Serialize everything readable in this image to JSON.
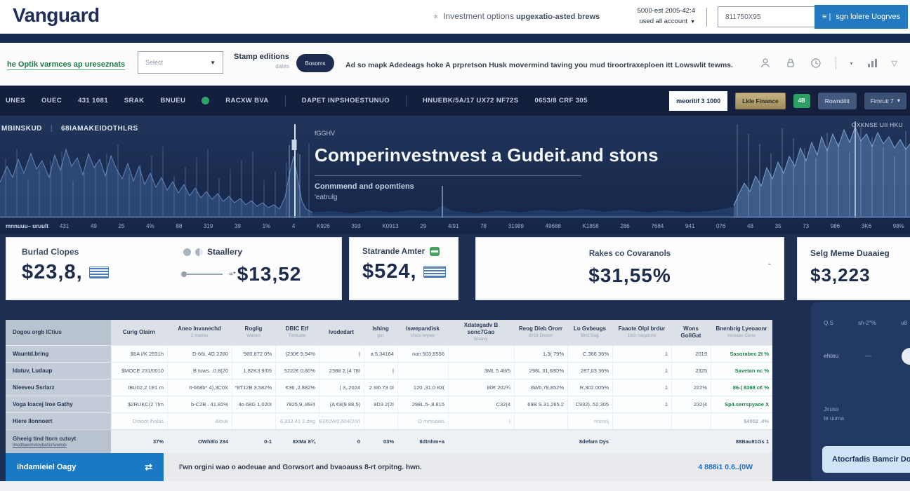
{
  "icons": {
    "asterisk": "∗",
    "caret_down": "▼",
    "caret_small": "▾",
    "caret_up": "ˆ",
    "menu_prefix": "≡ |",
    "swap": "⇄",
    "triangle": "▽",
    "pipe": "|",
    "dash": "—"
  },
  "colors": {
    "accent_blue": "#1a79c4",
    "navy": "#16294e",
    "green": "#2f9e64",
    "gold": "#b39f6e",
    "table_green": "#1e8048"
  },
  "header": {
    "logo": "Vanguard",
    "center_link": "Investment options",
    "right_note": "upgexatio-asted brews",
    "account_line1": "5000-est 2005-42:4",
    "account_line2": "used all account",
    "search_value": "811750X95",
    "signin_label": "sgn lolere Uogrves"
  },
  "toolbar": {
    "green_link": "he Optik varmces ap ureseznats",
    "select_value": "Select",
    "stamp_title": "Stamp editions",
    "stamp_sub": "dates",
    "pill_button": "Bosoms",
    "promo": "Ad so mapk Adedeags hoke A prpretson Husk movermind taving you mud tiroortraxeploen itt Lowswlit tewms."
  },
  "navbar": {
    "items": [
      "UNES",
      "OUEC",
      "431 1081",
      "SRAK",
      "BNUEU",
      "RACXW BVA",
      "DAPET INPSHOESTUNUO",
      "HNUEBK/5A/17 UX72 NF72S",
      "0653/8 CRF 305"
    ],
    "white_button": "meoritif 3 1000",
    "gold_button": "Lkle Finance",
    "green_badge": "4B",
    "grey_button": "Rownditit",
    "last_button": "Fimruti 7"
  },
  "hero": {
    "label_left_1": "MBINSKUD",
    "label_left_2": "68IAMAKEIDOTHLRS",
    "label_right": "OXKNSE UII HKU",
    "eyebrow": "fGGHV",
    "title": "Comperinvestnvest a Gudeit.and stons",
    "subtitle1": "Conmmend and opomtiens",
    "subtitle2": "'eatrulg",
    "axis_label": "mnnuuu– uruult",
    "ticks": [
      "431",
      "49",
      "25",
      "4%",
      "88",
      "319",
      "39",
      "1%",
      "4",
      "K926",
      "393",
      "K0913",
      "29",
      "4/91",
      "78",
      "31989",
      "49688",
      "K1858",
      "286",
      "7684",
      "941",
      "076",
      "48",
      "35",
      "73",
      "986",
      "3K6",
      "98%"
    ]
  },
  "stats": [
    {
      "label": "Burlad Clopes",
      "value": "$23,8,"
    },
    {
      "label": "Staallery",
      "prefix": "=*",
      "value": "$13,52"
    },
    {
      "label": "Statrande Amter",
      "value": "$524,"
    },
    {
      "label": "Rakes co Covaranols",
      "value": "$31,55%"
    },
    {
      "label": "Selg Meme Duaaieg",
      "value": "$3,223"
    }
  ],
  "table": {
    "columns": [
      {
        "label": "Dogou orgb ICtius",
        "sub": ""
      },
      {
        "label": "Curig Olairn",
        "sub": ""
      },
      {
        "label": "Aneo Invanechd",
        "sub": "2 matlas"
      },
      {
        "label": "Roglig",
        "sub": "Wacen"
      },
      {
        "label": "DBIC Etf",
        "sub": "Tinduate"
      },
      {
        "label": "Ivodedart",
        "sub": ""
      },
      {
        "label": "Ishing",
        "sub": "gur"
      },
      {
        "label": "Iswepandisk",
        "sub": "Uscs iwywe"
      },
      {
        "label": "Xdategadv B sonc7Gao",
        "sub": "braavy"
      },
      {
        "label": "Reog Dieb Ororr",
        "sub": "Br18 Diston"
      },
      {
        "label": "Lo Gvbeugs",
        "sub": "Brct:Sag"
      },
      {
        "label": "Faaote Olpl brdur",
        "sub": "1b/z naqatrzw"
      },
      {
        "label": "Wons GoliGat",
        "sub": ""
      },
      {
        "label": "Bnenbrig Lyeoaonr",
        "sub": "Inceaas Cene"
      }
    ],
    "rows": [
      {
        "name": "Wauntd.bring",
        "faded": false,
        "cells": [
          "$6A I/K 2531h",
          "D-66i. 4G 2260",
          "'960.872 0%",
          "(230€ 9,94%",
          "|",
          "a 5.34164",
          "non 503,8556",
          "",
          "1,3( 79%",
          "C.366 36%",
          "1",
          "2019"
        ],
        "last": "Sasorabec 2t %"
      },
      {
        "name": "Idatuv, Ludaup",
        "faded": false,
        "cells": [
          "$MOCE 231/0010",
          "B tuws. .0,8(20",
          "1,82K3 9/05",
          "5222€ 0,80%",
          "2388 2,(4 78I",
          "|",
          "",
          "3ML 5 48/5",
          "298L 31,68D%",
          "287,03 36%",
          "1",
          "2325"
        ],
        "last": "Savetan nc %"
      },
      {
        "name": "Nieeveu Ssrlarz",
        "faded": false,
        "cells": [
          "IBU02,2 1E1 m",
          "It-668b* 4),3C0X",
          "*8T12B 3,582%",
          "€36 ,2,882%",
          "( 3,.2024",
          "2 3I6 73 0I",
          "120 ,31,0 83(",
          "80€ 202¾",
          "8W6,78,852%",
          "R,302.005%",
          "1",
          "222%"
        ],
        "last": "86-( 8368 c€ %"
      },
      {
        "name": "Voga Ioacej Iroe Gathy",
        "faded": false,
        "cells": [
          "$2RUKC(2 7Im",
          "b-C2B . 41,82%",
          "4o 68G 1,020I",
          "7825,9,.89/4",
          "(A €8(9 88,5)",
          "9D3 2(2I",
          "298L.5-,8.815",
          "C32(4",
          "69B S.31,265.2",
          "C932),.52,305",
          "1",
          "232(4"
        ],
        "last": "Sp4.serrspyaoe X"
      },
      {
        "name": "Hiere Ilonnoert",
        "faded": true,
        "cells": [
          "Draoot ihalas",
          "Alouk",
          "",
          "6,833.41 2.deg",
          "B0€0W0,504(20/I",
          "",
          "O mmuaws",
          "|",
          "",
          "mssvij",
          "",
          ""
        ],
        "last": "$4002 .4%"
      }
    ],
    "footer": {
      "name": "Gheeig tind Itorn cutoyt",
      "sub": "Imodbawmvkoybahcmvwmdi",
      "cells": [
        "37%",
        "OWh8lo 234",
        "0-1",
        "8XMa 8¾",
        "0",
        "03%",
        "8dtnhm+a",
        "",
        "",
        "8defam Dys",
        "",
        ""
      ],
      "last": "88Bau81Gs 1"
    }
  },
  "bottom": {
    "button": "ihdamieiel Oagy",
    "note": "I'wn orgini wao o aodeuae and Gorwsort and bvaoauss 8-rt orpitng. hwn.",
    "link": "4 888i1 0.6..(0W"
  },
  "panel": {
    "r1a": "Q.S",
    "r1b": "sh-2°%",
    "r1c": "u8",
    "r2a": "ehteu",
    "r3a": "Jnuso",
    "r3b": "te uuma",
    "button": "Atocrfadis Bamcir Do"
  }
}
